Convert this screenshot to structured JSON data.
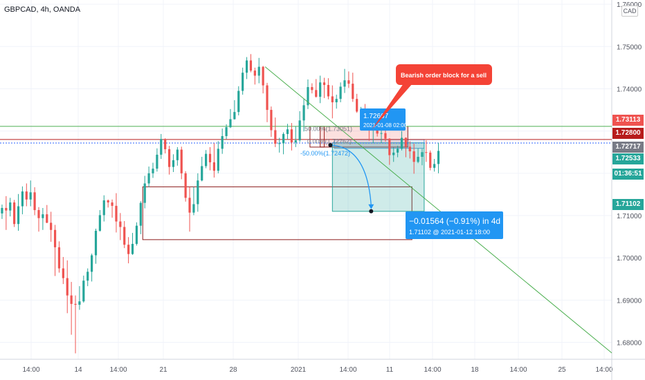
{
  "header": {
    "symbol": "GBPCAD, 4h, OANDA"
  },
  "price_axis": {
    "currency": "CAD",
    "ticks": [
      "1.76000",
      "1.75000",
      "1.74000",
      "1.73000",
      "1.72000",
      "1.71000",
      "1.70000",
      "1.69000",
      "1.68000"
    ],
    "badges": [
      {
        "label": "1.73113",
        "color": "#ef5350"
      },
      {
        "label": "1.72800",
        "color": "#b71c1c"
      },
      {
        "label": "1.72717",
        "color": "#787b86"
      },
      {
        "label": "1.72533",
        "color": "#26a69a"
      },
      {
        "label": "01:36:51",
        "color": "#26a69a"
      },
      {
        "label": "1.71102",
        "color": "#26a69a"
      }
    ]
  },
  "time_axis": {
    "ticks": [
      "14:00",
      "14",
      "14:00",
      "21",
      "28",
      "2021",
      "14:00",
      "11",
      "14:00",
      "18",
      "14:00",
      "25",
      "14:00"
    ]
  },
  "annotations": {
    "callout": "Bearish order block for a sell",
    "entry_price": "1.72667",
    "entry_time": "2021-01-08 02:00",
    "fib_50_top": "50.00%(1.73051)",
    "fib_0": "0.00%(1.72762)",
    "fib_50_bottom": "-50.00%(1.72472)",
    "target_main": "−0.01564 (−0.91%) in 4d 16h",
    "target_sub": "1.71102 @ 2021-01-12  18:00"
  },
  "chart_data": {
    "type": "candlestick",
    "symbol": "GBPCAD",
    "timeframe": "4h",
    "ylim": [
      1.676,
      1.761
    ],
    "x_range": [
      0,
      150
    ],
    "up_color": "#26a69a",
    "down_color": "#ef5350",
    "candles": [
      [
        1.7105,
        1.7118,
        1.7126,
        1.7092
      ],
      [
        1.7118,
        1.7112,
        1.7146,
        1.7066
      ],
      [
        1.7112,
        1.7131,
        1.7142,
        1.7098
      ],
      [
        1.7131,
        1.708,
        1.7137,
        1.7073
      ],
      [
        1.708,
        1.7122,
        1.7151,
        1.7064
      ],
      [
        1.7122,
        1.7157,
        1.7169,
        1.7103
      ],
      [
        1.7157,
        1.7138,
        1.7176,
        1.7122
      ],
      [
        1.7138,
        1.7155,
        1.7183,
        1.7122
      ],
      [
        1.7155,
        1.7113,
        1.7167,
        1.7101
      ],
      [
        1.7113,
        1.7094,
        1.712,
        1.7062
      ],
      [
        1.7094,
        1.7103,
        1.7118,
        1.7066
      ],
      [
        1.7103,
        1.7083,
        1.7125,
        1.7082
      ],
      [
        1.7083,
        1.7066,
        1.7109,
        1.7038
      ],
      [
        1.7066,
        1.7025,
        1.7078,
        1.6957
      ],
      [
        1.7025,
        1.6975,
        1.7039,
        1.6965
      ],
      [
        1.6975,
        1.6952,
        1.7002,
        1.6938
      ],
      [
        1.6952,
        1.6911,
        1.6994,
        1.6869
      ],
      [
        1.6911,
        1.6891,
        1.6943,
        1.6818
      ],
      [
        1.6891,
        1.6889,
        1.6911,
        1.6774
      ],
      [
        1.6889,
        1.6897,
        1.6933,
        1.6877
      ],
      [
        1.6897,
        1.6946,
        1.6958,
        1.6894
      ],
      [
        1.6946,
        1.6967,
        1.6975,
        1.6933
      ],
      [
        1.6967,
        1.7006,
        1.701,
        1.6944
      ],
      [
        1.7006,
        1.7064,
        1.7069,
        1.6986
      ],
      [
        1.7064,
        1.7101,
        1.7113,
        1.7062
      ],
      [
        1.7101,
        1.7136,
        1.7148,
        1.7086
      ],
      [
        1.7136,
        1.7131,
        1.7138,
        1.7119
      ],
      [
        1.7131,
        1.7123,
        1.7138,
        1.7095
      ],
      [
        1.7123,
        1.7086,
        1.7153,
        1.706
      ],
      [
        1.7086,
        1.7073,
        1.7106,
        1.7042
      ],
      [
        1.7073,
        1.7031,
        1.7087,
        1.7023
      ],
      [
        1.7031,
        1.7009,
        1.7049,
        1.6987
      ],
      [
        1.7009,
        1.7033,
        1.7059,
        1.7007
      ],
      [
        1.7033,
        1.7076,
        1.7084,
        1.7029
      ],
      [
        1.7076,
        1.713,
        1.7134,
        1.7056
      ],
      [
        1.713,
        1.7176,
        1.7194,
        1.7117
      ],
      [
        1.7176,
        1.72,
        1.7216,
        1.7167
      ],
      [
        1.72,
        1.7211,
        1.7225,
        1.7189
      ],
      [
        1.7211,
        1.7244,
        1.7259,
        1.7204
      ],
      [
        1.7244,
        1.7281,
        1.7293,
        1.7234
      ],
      [
        1.7281,
        1.7257,
        1.7283,
        1.7247
      ],
      [
        1.7257,
        1.7215,
        1.7265,
        1.7197
      ],
      [
        1.7215,
        1.7231,
        1.7245,
        1.7203
      ],
      [
        1.7231,
        1.7256,
        1.7262,
        1.7218
      ],
      [
        1.7256,
        1.72,
        1.7263,
        1.7186
      ],
      [
        1.72,
        1.7142,
        1.7205,
        1.7133
      ],
      [
        1.7142,
        1.7107,
        1.7168,
        1.7062
      ],
      [
        1.7107,
        1.7127,
        1.7168,
        1.7101
      ],
      [
        1.7127,
        1.7183,
        1.72,
        1.7109
      ],
      [
        1.7183,
        1.7217,
        1.7239,
        1.7181
      ],
      [
        1.7217,
        1.7246,
        1.7255,
        1.7212
      ],
      [
        1.7246,
        1.7226,
        1.7262,
        1.7207
      ],
      [
        1.7226,
        1.7206,
        1.7271,
        1.719
      ],
      [
        1.7206,
        1.7258,
        1.7276,
        1.72
      ],
      [
        1.7258,
        1.7288,
        1.7306,
        1.7246
      ],
      [
        1.7288,
        1.7309,
        1.7316,
        1.7281
      ],
      [
        1.7309,
        1.7328,
        1.7352,
        1.7307
      ],
      [
        1.7328,
        1.7345,
        1.7373,
        1.7327
      ],
      [
        1.7345,
        1.7395,
        1.7406,
        1.7337
      ],
      [
        1.7395,
        1.7438,
        1.745,
        1.7386
      ],
      [
        1.7438,
        1.7467,
        1.7475,
        1.7423
      ],
      [
        1.7467,
        1.7443,
        1.7482,
        1.7439
      ],
      [
        1.7443,
        1.7431,
        1.745,
        1.741
      ],
      [
        1.7431,
        1.7452,
        1.7473,
        1.7413
      ],
      [
        1.7452,
        1.7408,
        1.7454,
        1.7389
      ],
      [
        1.7408,
        1.735,
        1.7414,
        1.7321
      ],
      [
        1.735,
        1.7302,
        1.7358,
        1.7286
      ],
      [
        1.7302,
        1.727,
        1.7332,
        1.7262
      ],
      [
        1.727,
        1.7271,
        1.7284,
        1.7249
      ],
      [
        1.7271,
        1.7293,
        1.7297,
        1.7245
      ],
      [
        1.7293,
        1.7304,
        1.7317,
        1.7281
      ],
      [
        1.7304,
        1.7273,
        1.7319,
        1.7254
      ],
      [
        1.7273,
        1.7278,
        1.7311,
        1.7262
      ],
      [
        1.7278,
        1.7325,
        1.7347,
        1.7274
      ],
      [
        1.7325,
        1.7361,
        1.7376,
        1.7299
      ],
      [
        1.7361,
        1.7404,
        1.7422,
        1.7352
      ],
      [
        1.7404,
        1.7397,
        1.7413,
        1.7389
      ],
      [
        1.7397,
        1.7381,
        1.7423,
        1.7379
      ],
      [
        1.7381,
        1.7415,
        1.7431,
        1.7366
      ],
      [
        1.7415,
        1.7409,
        1.7426,
        1.7378
      ],
      [
        1.7409,
        1.7382,
        1.7425,
        1.7375
      ],
      [
        1.7382,
        1.7368,
        1.7408,
        1.733
      ],
      [
        1.7368,
        1.7376,
        1.7386,
        1.7353
      ],
      [
        1.7376,
        1.7405,
        1.7415,
        1.7368
      ],
      [
        1.7405,
        1.742,
        1.7447,
        1.739
      ],
      [
        1.742,
        1.7412,
        1.7441,
        1.7402
      ],
      [
        1.7412,
        1.7376,
        1.7438,
        1.7369
      ],
      [
        1.7376,
        1.7346,
        1.7388,
        1.7343
      ],
      [
        1.7346,
        1.7346,
        1.7357,
        1.7309
      ],
      [
        1.7346,
        1.7312,
        1.7364,
        1.7302
      ],
      [
        1.7312,
        1.7301,
        1.7337,
        1.7277
      ],
      [
        1.7301,
        1.731,
        1.7317,
        1.7271
      ],
      [
        1.731,
        1.7294,
        1.7338,
        1.7287
      ],
      [
        1.7294,
        1.7295,
        1.7305,
        1.7272
      ],
      [
        1.7295,
        1.7282,
        1.7311,
        1.7275
      ],
      [
        1.7282,
        1.7243,
        1.7283,
        1.722
      ],
      [
        1.7243,
        1.7249,
        1.7261,
        1.7227
      ],
      [
        1.7249,
        1.7258,
        1.7265,
        1.7238
      ],
      [
        1.7258,
        1.7284,
        1.73,
        1.7254
      ],
      [
        1.7284,
        1.7263,
        1.7285,
        1.7238
      ],
      [
        1.7263,
        1.7252,
        1.7276,
        1.7235
      ],
      [
        1.7252,
        1.7227,
        1.727,
        1.7199
      ],
      [
        1.7227,
        1.7239,
        1.7259,
        1.7224
      ],
      [
        1.7239,
        1.725,
        1.7258,
        1.7219
      ],
      [
        1.725,
        1.7249,
        1.7278,
        1.7227
      ],
      [
        1.7249,
        1.7213,
        1.7254,
        1.7207
      ],
      [
        1.7213,
        1.7222,
        1.7234,
        1.7204
      ],
      [
        1.7222,
        1.7253,
        1.7272,
        1.72
      ]
    ],
    "overlays": {
      "trendline": {
        "from": {
          "x": 65,
          "y": 1.7452
        },
        "to": {
          "x": 150,
          "y": 1.6775
        },
        "color": "#4caf50"
      },
      "hlines": [
        {
          "y": 1.7311,
          "color": "#4caf50"
        },
        {
          "y": 1.728,
          "color": "#b71c1c"
        },
        {
          "y": 1.72717,
          "color": "#2962ff",
          "dashed": true
        }
      ],
      "boxes": [
        {
          "x0": 35,
          "x1": 101,
          "y0": 1.7168,
          "y1": 1.7043,
          "color": "#8b1a1a",
          "fill": "none"
        },
        {
          "x0": 76,
          "x1": 79.5,
          "y0": 1.7311,
          "y1": 1.7262,
          "color": "#8b1a1a",
          "fill": "none"
        },
        {
          "x0": 78.5,
          "x1": 100,
          "y0": 1.7311,
          "y1": 1.7262,
          "color": "#8b1a1a",
          "fill": "rgba(239,83,80,0.18)"
        },
        {
          "x0": 82,
          "x1": 104,
          "y0": 1.728,
          "y1": 1.7259,
          "color": "#5b9bd5",
          "fill": "rgba(91,155,213,0.18)"
        },
        {
          "x0": 81.5,
          "x1": 104,
          "y0": 1.7272,
          "y1": 1.711,
          "color": "#26a69a",
          "fill": "rgba(38,166,154,0.22)"
        }
      ],
      "entry_point": {
        "x": 81,
        "y": 1.72667
      },
      "target_point": {
        "x": 91,
        "y": 1.71102
      }
    }
  }
}
